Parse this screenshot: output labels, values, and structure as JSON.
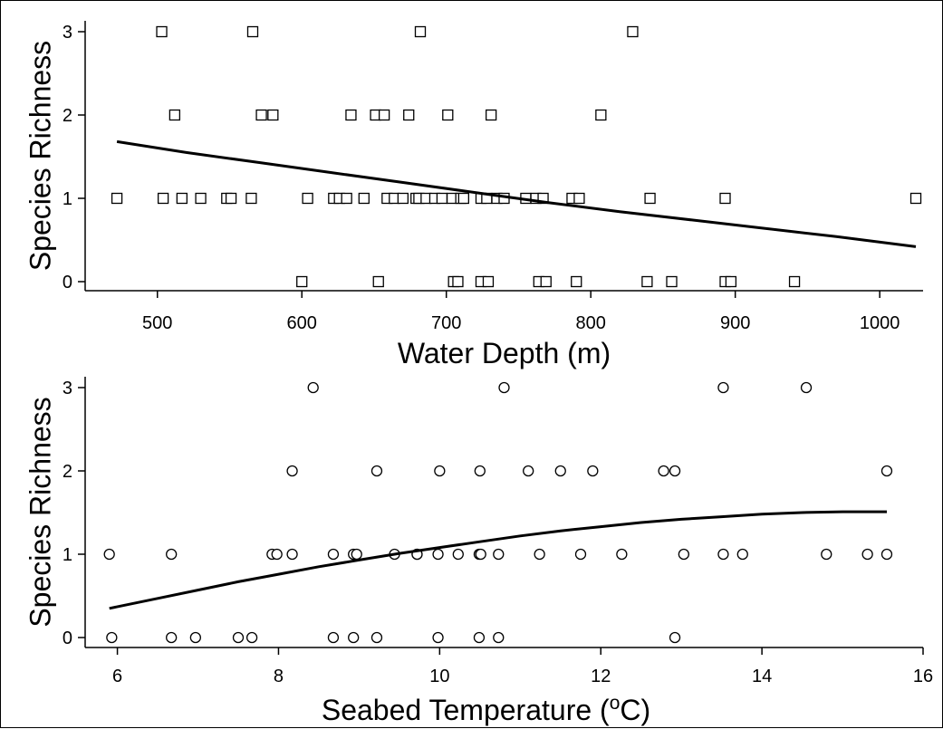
{
  "colors": {
    "ink": "#000000",
    "background": "#ffffff"
  },
  "chart_data": [
    {
      "type": "scatter",
      "marker": "square",
      "xlabel": "Water Depth (m)",
      "ylabel": "Species Richness",
      "xlim": [
        450,
        1030
      ],
      "ylim": [
        -0.1,
        3.1
      ],
      "xticks": [
        500,
        600,
        700,
        800,
        900,
        1000
      ],
      "yticks": [
        0,
        1,
        2,
        3
      ],
      "grid": false,
      "points": [
        [
          503,
          3
        ],
        [
          566,
          3
        ],
        [
          682,
          3
        ],
        [
          829,
          3
        ],
        [
          512,
          2
        ],
        [
          572,
          2
        ],
        [
          580,
          2
        ],
        [
          634,
          2
        ],
        [
          651,
          2
        ],
        [
          657,
          2
        ],
        [
          674,
          2
        ],
        [
          701,
          2
        ],
        [
          731,
          2
        ],
        [
          807,
          2
        ],
        [
          472,
          1
        ],
        [
          504,
          1
        ],
        [
          517,
          1
        ],
        [
          530,
          1
        ],
        [
          548,
          1
        ],
        [
          551,
          1
        ],
        [
          565,
          1
        ],
        [
          604,
          1
        ],
        [
          622,
          1
        ],
        [
          626,
          1
        ],
        [
          631,
          1
        ],
        [
          643,
          1
        ],
        [
          659,
          1
        ],
        [
          664,
          1
        ],
        [
          670,
          1
        ],
        [
          679,
          1
        ],
        [
          681,
          1
        ],
        [
          686,
          1
        ],
        [
          692,
          1
        ],
        [
          697,
          1
        ],
        [
          704,
          1
        ],
        [
          710,
          1
        ],
        [
          712,
          1
        ],
        [
          724,
          1
        ],
        [
          728,
          1
        ],
        [
          735,
          1
        ],
        [
          740,
          1
        ],
        [
          755,
          1
        ],
        [
          762,
          1
        ],
        [
          767,
          1
        ],
        [
          787,
          1
        ],
        [
          792,
          1
        ],
        [
          841,
          1
        ],
        [
          893,
          1
        ],
        [
          1025,
          1
        ],
        [
          600,
          0
        ],
        [
          653,
          0
        ],
        [
          705,
          0
        ],
        [
          708,
          0
        ],
        [
          724,
          0
        ],
        [
          729,
          0
        ],
        [
          764,
          0
        ],
        [
          769,
          0
        ],
        [
          790,
          0
        ],
        [
          839,
          0
        ],
        [
          856,
          0
        ],
        [
          893,
          0
        ],
        [
          897,
          0
        ],
        [
          941,
          0
        ]
      ],
      "fit": {
        "x": [
          472,
          520,
          570,
          620,
          670,
          720,
          770,
          820,
          870,
          920,
          970,
          1025
        ],
        "y": [
          1.68,
          1.55,
          1.43,
          1.31,
          1.19,
          1.07,
          0.95,
          0.84,
          0.74,
          0.64,
          0.54,
          0.42
        ]
      }
    },
    {
      "type": "scatter",
      "marker": "circle",
      "xlabel_main": "Seabed Temperature (",
      "xlabel_sup": "o",
      "xlabel_end": "C)",
      "ylabel": "Species Richness",
      "xlim": [
        5.6,
        16
      ],
      "ylim": [
        -0.1,
        3.1
      ],
      "xticks": [
        6,
        8,
        10,
        12,
        14,
        16
      ],
      "yticks": [
        0,
        1,
        2,
        3
      ],
      "grid": false,
      "points": [
        [
          8.43,
          3
        ],
        [
          10.8,
          3
        ],
        [
          13.52,
          3
        ],
        [
          14.55,
          3
        ],
        [
          8.17,
          2
        ],
        [
          9.22,
          2
        ],
        [
          10.0,
          2
        ],
        [
          10.5,
          2
        ],
        [
          11.1,
          2
        ],
        [
          11.5,
          2
        ],
        [
          11.9,
          2
        ],
        [
          12.78,
          2
        ],
        [
          12.92,
          2
        ],
        [
          15.55,
          2
        ],
        [
          5.9,
          1
        ],
        [
          6.67,
          1
        ],
        [
          7.92,
          1
        ],
        [
          7.98,
          1
        ],
        [
          8.17,
          1
        ],
        [
          8.68,
          1
        ],
        [
          8.93,
          1
        ],
        [
          8.97,
          1
        ],
        [
          9.44,
          1
        ],
        [
          9.72,
          1
        ],
        [
          9.72,
          1
        ],
        [
          9.98,
          1
        ],
        [
          10.23,
          1
        ],
        [
          10.49,
          1
        ],
        [
          10.51,
          1
        ],
        [
          10.73,
          1
        ],
        [
          11.24,
          1
        ],
        [
          11.75,
          1
        ],
        [
          12.26,
          1
        ],
        [
          13.03,
          1
        ],
        [
          13.52,
          1
        ],
        [
          13.76,
          1
        ],
        [
          14.8,
          1
        ],
        [
          15.31,
          1
        ],
        [
          15.55,
          1
        ],
        [
          5.93,
          0
        ],
        [
          6.67,
          0
        ],
        [
          6.97,
          0
        ],
        [
          7.5,
          0
        ],
        [
          7.67,
          0
        ],
        [
          8.68,
          0
        ],
        [
          8.93,
          0
        ],
        [
          9.22,
          0
        ],
        [
          9.98,
          0
        ],
        [
          10.49,
          0
        ],
        [
          10.73,
          0
        ],
        [
          12.92,
          0
        ]
      ],
      "fit": {
        "x": [
          5.9,
          6.5,
          7.0,
          7.5,
          8.0,
          8.5,
          9.0,
          9.5,
          10.0,
          10.5,
          11.0,
          11.5,
          12.0,
          12.5,
          13.0,
          13.5,
          14.0,
          14.5,
          15.0,
          15.55
        ],
        "y": [
          0.35,
          0.47,
          0.57,
          0.67,
          0.76,
          0.85,
          0.93,
          1.01,
          1.08,
          1.15,
          1.22,
          1.28,
          1.33,
          1.38,
          1.42,
          1.45,
          1.48,
          1.5,
          1.51,
          1.51
        ]
      }
    }
  ]
}
